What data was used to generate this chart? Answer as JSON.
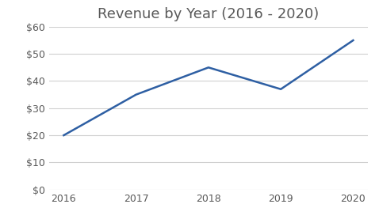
{
  "title": "Revenue by Year (2016 - 2020)",
  "x": [
    2016,
    2017,
    2018,
    2019,
    2020
  ],
  "y": [
    20,
    35,
    45,
    37,
    55
  ],
  "line_color": "#2E5FA3",
  "line_width": 1.8,
  "ylim": [
    0,
    60
  ],
  "yticks": [
    0,
    10,
    20,
    30,
    40,
    50,
    60
  ],
  "background_color": "#ffffff",
  "grid_color": "#d0d0d0",
  "title_fontsize": 13,
  "tick_fontsize": 9,
  "title_color": "#595959",
  "tick_color": "#595959"
}
